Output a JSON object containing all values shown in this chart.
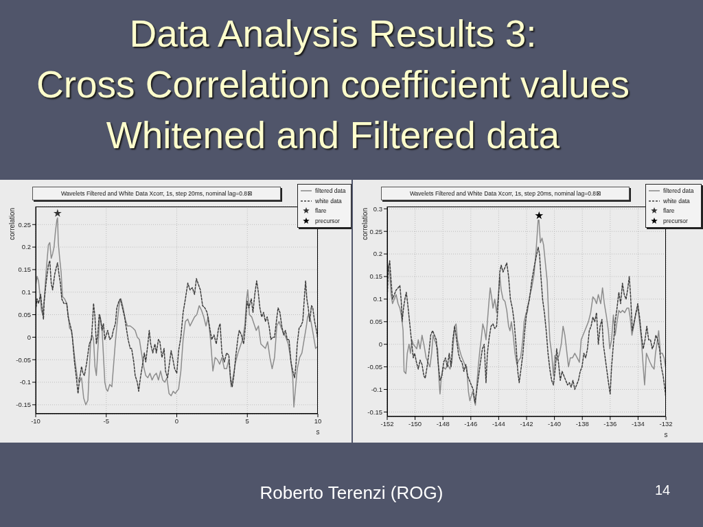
{
  "chart_data": [
    {
      "type": "line",
      "title": "Data Analysis Results 3:\nCross Correlation coefficient values\nWhitened and Filtered data",
      "subtitle": "Wavelets Filtered and White Data Xcorr, 1s, step 20ms, nominal lag=0.8⊠",
      "xlabel": "s",
      "ylabel": "correlation",
      "xlim": [
        -10,
        10
      ],
      "xticks": [
        -10,
        -5,
        0,
        5,
        10
      ],
      "ylim": [
        -0.17,
        0.29
      ],
      "yticks": [
        -0.15,
        -0.1,
        -0.05,
        0,
        0.05,
        0.1,
        0.15,
        0.2,
        0.25
      ],
      "grid": true,
      "legend": "top right",
      "series": [
        {
          "name": "filtered data",
          "color": "#8c8c8c",
          "line_style": "solid",
          "x": [
            -10,
            -9.9,
            -9.8,
            -9.7,
            -9.6,
            -9.5,
            -9.4,
            -9.25,
            -9.1,
            -9.0,
            -8.9,
            -8.8,
            -8.7,
            -8.6,
            -8.5,
            -8.45,
            -8.4,
            -8.3,
            -8.2,
            -8.1,
            -7.95,
            -7.8,
            -7.7,
            -7.6,
            -7.45,
            -7.35,
            -7.2,
            -7.05,
            -6.9,
            -6.75,
            -6.6,
            -6.45,
            -6.3,
            -6.2,
            -6.1,
            -6.0,
            -5.9,
            -5.8,
            -5.7,
            -5.45,
            -5.3,
            -5.2,
            -5.1,
            -5.0,
            -4.9,
            -4.75,
            -4.6,
            -4.5,
            -4.35,
            -4.2,
            -4.05,
            -3.95,
            -3.8,
            -3.65,
            -3.5,
            -3.3,
            -3.1,
            -2.95,
            -2.8,
            -2.65,
            -2.5,
            -2.35,
            -2.2,
            -2.05,
            -1.9,
            -1.75,
            -1.6,
            -1.45,
            -1.3,
            -1.15,
            -1.0,
            -0.85,
            -0.7,
            -0.55,
            -0.4,
            -0.25,
            -0.1,
            0.0,
            0.13,
            0.29,
            0.45,
            0.61,
            0.78,
            0.94,
            1.1,
            1.26,
            1.42,
            1.59,
            1.75,
            1.91,
            2.07,
            2.23,
            2.39,
            2.56,
            2.72,
            2.88,
            3.04,
            3.2,
            3.37,
            3.53,
            3.69,
            3.85,
            4.01,
            4.17,
            4.34,
            4.5,
            4.66,
            4.82,
            4.95,
            5.03,
            5.15,
            5.31,
            5.47,
            5.63,
            5.79,
            5.96,
            6.12,
            6.28,
            6.44,
            6.6,
            6.76,
            6.93,
            7.09,
            7.25,
            7.41,
            7.57,
            7.73,
            7.9,
            8.06,
            8.22,
            8.3,
            8.38,
            8.54,
            8.71,
            8.87,
            9.03,
            9.19,
            9.27,
            9.35,
            9.51,
            9.68,
            9.84,
            10.0
          ],
          "values": [
            0.115,
            0.135,
            0.125,
            0.095,
            0.06,
            0.05,
            0.08,
            0.15,
            0.205,
            0.21,
            0.175,
            0.185,
            0.2,
            0.235,
            0.26,
            0.265,
            0.21,
            0.175,
            0.145,
            0.09,
            0.085,
            0.075,
            0.05,
            0.02,
            0.015,
            -0.015,
            -0.055,
            -0.09,
            -0.1,
            -0.09,
            -0.135,
            -0.15,
            -0.14,
            -0.07,
            -0.005,
            0.005,
            -0.005,
            -0.065,
            -0.085,
            0.05,
            0.02,
            -0.04,
            -0.1,
            -0.115,
            -0.12,
            -0.105,
            -0.11,
            -0.07,
            -0.01,
            0.04,
            0.08,
            0.085,
            0.065,
            0.04,
            0.025,
            0.025,
            0.02,
            0.015,
            0.0,
            -0.005,
            -0.035,
            -0.065,
            -0.085,
            -0.09,
            -0.08,
            -0.095,
            -0.085,
            -0.08,
            -0.095,
            -0.075,
            -0.095,
            -0.1,
            -0.09,
            -0.125,
            -0.13,
            -0.12,
            -0.125,
            -0.12,
            -0.115,
            -0.075,
            -0.005,
            0.035,
            0.04,
            0.025,
            0.035,
            0.045,
            0.05,
            0.07,
            0.06,
            0.045,
            0.025,
            0.045,
            -0.005,
            -0.075,
            -0.045,
            -0.05,
            -0.06,
            -0.045,
            -0.07,
            -0.07,
            -0.05,
            -0.11,
            -0.085,
            -0.055,
            -0.035,
            -0.02,
            -0.005,
            0.025,
            0.085,
            0.105,
            0.05,
            0.045,
            0.03,
            0.015,
            0.025,
            -0.015,
            -0.02,
            -0.025,
            -0.01,
            -0.045,
            -0.07,
            -0.045,
            0.025,
            0.035,
            0.02,
            0.01,
            0.0,
            -0.015,
            -0.045,
            -0.09,
            -0.155,
            -0.125,
            -0.07,
            -0.045,
            -0.035,
            -0.005,
            0.025,
            0.045,
            0.05,
            0.035,
            0.005,
            -0.025,
            -0.02
          ]
        },
        {
          "name": "white data",
          "color": "#3c3c3c",
          "line_style": "dashed",
          "x": [
            -10,
            -9.9,
            -9.8,
            -9.65,
            -9.55,
            -9.45,
            -9.4,
            -9.25,
            -9.1,
            -9.0,
            -8.9,
            -8.8,
            -8.65,
            -8.5,
            -8.45,
            -8.35,
            -8.25,
            -8.15,
            -8.0,
            -7.8,
            -7.7,
            -7.5,
            -7.4,
            -7.25,
            -7.1,
            -7.0,
            -6.9,
            -6.75,
            -6.65,
            -6.55,
            -6.4,
            -6.2,
            -6.05,
            -5.95,
            -5.9,
            -5.8,
            -5.7,
            -5.6,
            -5.5,
            -5.4,
            -5.3,
            -5.2,
            -5.1,
            -5.0,
            -4.9,
            -4.75,
            -4.6,
            -4.5,
            -4.35,
            -4.25,
            -4.1,
            -4.0,
            -3.85,
            -3.7,
            -3.6,
            -3.45,
            -3.3,
            -3.2,
            -3.05,
            -2.95,
            -2.8,
            -2.7,
            -2.6,
            -2.45,
            -2.3,
            -2.2,
            -2.05,
            -1.95,
            -1.85,
            -1.7,
            -1.55,
            -1.45,
            -1.3,
            -1.2,
            -1.05,
            -0.9,
            -0.8,
            -0.65,
            -0.55,
            -0.4,
            -0.3,
            -0.15,
            0.0,
            0.13,
            0.29,
            0.45,
            0.61,
            0.78,
            0.94,
            1.1,
            1.26,
            1.39,
            1.5,
            1.67,
            1.83,
            1.99,
            2.15,
            2.31,
            2.48,
            2.64,
            2.8,
            2.96,
            3.07,
            3.2,
            3.37,
            3.53,
            3.69,
            3.82,
            3.93,
            4.05,
            4.17,
            4.34,
            4.43,
            4.58,
            4.74,
            4.85,
            4.98,
            5.11,
            5.28,
            5.4,
            5.53,
            5.66,
            5.76,
            5.89,
            6.02,
            6.15,
            6.28,
            6.41,
            6.54,
            6.67,
            6.8,
            6.93,
            7.06,
            7.18,
            7.31,
            7.44,
            7.57,
            7.7,
            7.83,
            7.96,
            8.09,
            8.22,
            8.35,
            8.45,
            8.54,
            8.67,
            8.8,
            8.93,
            9.06,
            9.13,
            9.22,
            9.32,
            9.42,
            9.55,
            9.64,
            9.77,
            9.9,
            10.0
          ],
          "values": [
            0.06,
            0.085,
            0.075,
            0.095,
            0.065,
            0.04,
            0.08,
            0.125,
            0.16,
            0.17,
            0.12,
            0.105,
            0.14,
            0.16,
            0.165,
            0.14,
            0.12,
            0.085,
            0.075,
            0.075,
            0.045,
            0.02,
            0.0,
            -0.055,
            -0.095,
            -0.125,
            -0.095,
            -0.065,
            -0.08,
            -0.085,
            -0.06,
            -0.015,
            -0.005,
            0.045,
            0.075,
            0.045,
            -0.015,
            0.005,
            0.05,
            0.04,
            0.015,
            0.03,
            -0.005,
            0.005,
            0.015,
            -0.005,
            0.0,
            0.015,
            0.03,
            0.065,
            0.08,
            0.085,
            0.065,
            0.045,
            0.025,
            -0.005,
            -0.025,
            -0.025,
            -0.055,
            -0.085,
            -0.1,
            -0.12,
            -0.095,
            -0.065,
            -0.035,
            -0.055,
            -0.015,
            0.015,
            -0.015,
            -0.035,
            -0.015,
            -0.035,
            -0.005,
            -0.01,
            -0.045,
            -0.025,
            -0.075,
            -0.09,
            -0.065,
            -0.03,
            -0.045,
            -0.07,
            -0.08,
            -0.03,
            0.0,
            0.055,
            0.085,
            0.12,
            0.105,
            0.11,
            0.095,
            0.13,
            0.12,
            0.105,
            0.07,
            0.065,
            0.055,
            0.025,
            -0.005,
            0.005,
            -0.015,
            0.02,
            0.03,
            -0.035,
            -0.055,
            -0.035,
            -0.04,
            -0.095,
            -0.11,
            -0.085,
            -0.045,
            0.0,
            0.015,
            0.005,
            -0.015,
            0.02,
            0.08,
            0.065,
            0.085,
            0.055,
            0.095,
            0.125,
            0.105,
            0.065,
            0.045,
            0.055,
            0.035,
            0.045,
            0.025,
            -0.005,
            0.0,
            0.0,
            0.035,
            0.065,
            0.055,
            0.025,
            0.005,
            0.015,
            -0.005,
            -0.005,
            -0.055,
            -0.075,
            -0.09,
            -0.06,
            -0.015,
            0.02,
            0.025,
            0.035,
            0.095,
            0.125,
            0.085,
            0.065,
            0.035,
            0.07,
            0.065,
            0.035,
            0.015,
            -0.005
          ]
        },
        {
          "name": "flare",
          "type": "scatter",
          "color": "#333333",
          "marker": "star",
          "x": [
            -8.45
          ],
          "values": [
            0.275
          ]
        },
        {
          "name": "precursor",
          "type": "scatter",
          "color": "#000000",
          "marker": "star"
        }
      ],
      "annotations": [
        "Roberto Terenzi (ROG)",
        "14"
      ]
    },
    {
      "type": "line",
      "subtitle": "Wavelets Filtered and White Data Xcorr, 1s, step 20ms, nominal lag=0.8⊠",
      "xlabel": "s",
      "ylabel": "correlation",
      "xlim": [
        -152,
        -132
      ],
      "xticks": [
        -152,
        -150,
        -148,
        -146,
        -144,
        -142,
        -140,
        -138,
        -136,
        -134,
        -132
      ],
      "ylim": [
        -0.16,
        0.305
      ],
      "yticks": [
        -0.15,
        -0.1,
        -0.05,
        0,
        0.05,
        0.1,
        0.15,
        0.2,
        0.25,
        0.3
      ],
      "grid": true,
      "legend": "top right",
      "series": [
        {
          "name": "filtered data",
          "color": "#8c8c8c",
          "line_style": "solid",
          "x": [
            -152.0,
            -151.92,
            -151.82,
            -151.72,
            -151.62,
            -151.49,
            -151.36,
            -151.22,
            -151.09,
            -150.96,
            -150.86,
            -150.79,
            -150.66,
            -150.56,
            -150.43,
            -150.33,
            -150.23,
            -150.13,
            -149.88,
            -149.77,
            -149.64,
            -149.5,
            -149.34,
            -149.21,
            -149.07,
            -148.94,
            -148.81,
            -148.71,
            -148.61,
            -148.48,
            -148.38,
            -148.28,
            -148.21,
            -148.12,
            -147.98,
            -147.82,
            -147.65,
            -147.49,
            -147.36,
            -147.26,
            -147.16,
            -147.06,
            -146.96,
            -146.83,
            -146.69,
            -146.56,
            -146.43,
            -146.3,
            -146.17,
            -146.07,
            -145.97,
            -145.87,
            -145.77,
            -145.67,
            -145.57,
            -145.47,
            -145.34,
            -145.24,
            -145.14,
            -145.01,
            -144.91,
            -144.81,
            -144.71,
            -144.61,
            -144.51,
            -144.41,
            -144.28,
            -144.15,
            -144.02,
            -143.92,
            -143.82,
            -143.69,
            -143.55,
            -143.42,
            -143.29,
            -143.19,
            -143.09,
            -142.96,
            -142.83,
            -142.69,
            -142.56,
            -142.43,
            -142.3,
            -142.17,
            -142.03,
            -141.95,
            -141.79,
            -141.63,
            -141.46,
            -141.3,
            -141.17,
            -141.11,
            -141.01,
            -140.89,
            -140.78,
            -140.65,
            -140.52,
            -140.41,
            -140.33,
            -140.2,
            -140.07,
            -139.97,
            -139.84,
            -139.67,
            -139.51,
            -139.38,
            -139.25,
            -139.12,
            -138.99,
            -138.86,
            -138.7,
            -138.54,
            -138.37,
            -138.21,
            -138.08,
            -137.95,
            -137.82,
            -137.69,
            -137.56,
            -137.4,
            -137.24,
            -137.11,
            -136.98,
            -136.85,
            -136.68,
            -136.55,
            -136.42,
            -136.26,
            -136.13,
            -136.03,
            -135.9,
            -135.77,
            -135.64,
            -135.51,
            -135.38,
            -135.25,
            -135.12,
            -134.96,
            -134.8,
            -134.67,
            -134.57,
            -134.44,
            -134.31,
            -134.15,
            -134.02,
            -133.89,
            -133.76,
            -133.63,
            -133.53,
            -133.4,
            -133.27,
            -133.14,
            -132.98,
            -132.85,
            -132.75,
            -132.65,
            -132.52,
            -132.39,
            -132.26,
            -132.13,
            -132.03
          ],
          "values": [
            0.155,
            0.175,
            0.155,
            0.11,
            0.09,
            0.1,
            0.11,
            0.09,
            0.08,
            0.06,
            0.03,
            -0.06,
            -0.065,
            -0.02,
            0.0,
            -0.02,
            0.01,
            0.0,
            -0.01,
            0.01,
            -0.01,
            0.02,
            -0.005,
            -0.03,
            -0.04,
            -0.05,
            -0.02,
            0.02,
            0.01,
            0.0,
            -0.01,
            -0.08,
            -0.11,
            -0.075,
            -0.05,
            -0.055,
            -0.045,
            -0.055,
            -0.04,
            0.0,
            0.04,
            0.045,
            0.01,
            -0.01,
            -0.025,
            -0.035,
            -0.045,
            -0.05,
            -0.105,
            -0.125,
            -0.115,
            -0.105,
            -0.12,
            -0.135,
            -0.09,
            -0.05,
            -0.01,
            0.015,
            0.045,
            0.03,
            0.01,
            0.05,
            0.09,
            0.125,
            0.105,
            0.08,
            0.1,
            0.07,
            0.11,
            0.15,
            0.12,
            0.1,
            0.095,
            0.075,
            0.04,
            0.03,
            0.05,
            0.02,
            -0.02,
            -0.045,
            -0.035,
            -0.03,
            0.0,
            0.05,
            0.07,
            0.07,
            0.105,
            0.125,
            0.155,
            0.215,
            0.275,
            0.275,
            0.225,
            0.235,
            0.22,
            0.18,
            0.14,
            0.06,
            0.01,
            -0.02,
            -0.07,
            -0.025,
            -0.035,
            -0.025,
            0.0,
            0.04,
            0.02,
            -0.015,
            -0.05,
            -0.03,
            -0.03,
            -0.02,
            -0.03,
            -0.04,
            0.01,
            0.02,
            0.03,
            0.04,
            0.05,
            0.07,
            0.105,
            0.1,
            0.09,
            0.11,
            0.09,
            0.125,
            0.09,
            0.06,
            0.03,
            -0.01,
            0.01,
            0.065,
            0.02,
            0.05,
            0.075,
            0.07,
            0.075,
            0.07,
            0.08,
            0.08,
            0.06,
            0.02,
            0.04,
            0.07,
            0.08,
            0.05,
            0.01,
            -0.05,
            -0.09,
            -0.02,
            -0.03,
            -0.04,
            -0.05,
            -0.055,
            -0.02,
            0.0,
            0.03,
            -0.02,
            -0.02,
            -0.03,
            -0.05
          ]
        },
        {
          "name": "white data",
          "color": "#3c3c3c",
          "line_style": "dashed",
          "x": [
            -152.0,
            -151.92,
            -151.82,
            -151.72,
            -151.62,
            -151.49,
            -151.36,
            -151.22,
            -151.09,
            -150.99,
            -150.93,
            -150.83,
            -150.73,
            -150.63,
            -150.53,
            -150.43,
            -150.33,
            -150.23,
            -150.13,
            -150.03,
            -149.9,
            -149.77,
            -149.64,
            -149.5,
            -149.37,
            -149.27,
            -149.14,
            -149.01,
            -148.88,
            -148.74,
            -148.61,
            -148.48,
            -148.35,
            -148.21,
            -148.08,
            -147.95,
            -147.82,
            -147.69,
            -147.55,
            -147.42,
            -147.29,
            -147.16,
            -147.02,
            -146.89,
            -146.76,
            -146.63,
            -146.5,
            -146.36,
            -146.23,
            -146.1,
            -145.97,
            -145.83,
            -145.7,
            -145.57,
            -145.44,
            -145.31,
            -145.17,
            -145.04,
            -144.91,
            -144.81,
            -144.68,
            -144.55,
            -144.41,
            -144.28,
            -144.15,
            -144.02,
            -143.92,
            -143.82,
            -143.69,
            -143.55,
            -143.42,
            -143.29,
            -143.16,
            -143.02,
            -142.89,
            -142.76,
            -142.63,
            -142.53,
            -142.4,
            -142.26,
            -142.13,
            -142.03,
            -141.95,
            -141.79,
            -141.63,
            -141.46,
            -141.3,
            -141.17,
            -141.07,
            -140.98,
            -140.85,
            -140.72,
            -140.59,
            -140.46,
            -140.33,
            -140.2,
            -140.07,
            -139.93,
            -139.84,
            -139.71,
            -139.58,
            -139.45,
            -139.32,
            -139.19,
            -139.06,
            -138.93,
            -138.8,
            -138.67,
            -138.54,
            -138.41,
            -138.28,
            -138.15,
            -138.02,
            -137.89,
            -137.76,
            -137.63,
            -137.5,
            -137.37,
            -137.24,
            -137.11,
            -136.98,
            -136.85,
            -136.72,
            -136.59,
            -136.49,
            -136.36,
            -136.23,
            -136.1,
            -136.0,
            -135.9,
            -135.77,
            -135.64,
            -135.51,
            -135.38,
            -135.25,
            -135.12,
            -134.99,
            -134.86,
            -134.73,
            -134.63,
            -134.54,
            -134.41,
            -134.28,
            -134.15,
            -134.02,
            -133.89,
            -133.76,
            -133.63,
            -133.5,
            -133.37,
            -133.24,
            -133.11,
            -132.98,
            -132.85,
            -132.72,
            -132.59,
            -132.46,
            -132.33,
            -132.2,
            -132.07,
            -132.0
          ],
          "values": [
            0.1,
            0.165,
            0.185,
            0.14,
            0.1,
            0.11,
            0.12,
            0.125,
            0.13,
            0.095,
            0.05,
            0.08,
            0.1,
            0.115,
            0.09,
            0.06,
            0.03,
            0.0,
            -0.03,
            -0.02,
            -0.04,
            -0.055,
            -0.035,
            -0.045,
            -0.07,
            -0.075,
            -0.05,
            -0.02,
            0.02,
            0.03,
            0.02,
            0.01,
            -0.04,
            -0.08,
            -0.07,
            -0.04,
            -0.03,
            -0.05,
            -0.02,
            -0.05,
            0.01,
            0.04,
            0.01,
            -0.02,
            -0.035,
            -0.04,
            -0.06,
            -0.045,
            -0.07,
            -0.08,
            -0.09,
            -0.1,
            -0.13,
            -0.1,
            -0.07,
            -0.04,
            -0.01,
            0.0,
            -0.085,
            -0.02,
            0.015,
            0.04,
            0.045,
            0.035,
            0.04,
            0.1,
            0.16,
            0.175,
            0.16,
            0.17,
            0.18,
            0.15,
            0.1,
            0.08,
            0.05,
            0.0,
            -0.06,
            -0.085,
            -0.055,
            -0.02,
            0.03,
            0.06,
            0.08,
            0.1,
            0.14,
            0.17,
            0.195,
            0.215,
            0.2,
            0.155,
            0.1,
            0.07,
            0.03,
            -0.02,
            -0.055,
            -0.08,
            -0.09,
            -0.05,
            -0.01,
            -0.04,
            -0.08,
            -0.06,
            -0.07,
            -0.08,
            -0.09,
            -0.085,
            -0.095,
            -0.08,
            -0.1,
            -0.09,
            -0.08,
            -0.06,
            -0.05,
            -0.02,
            -0.03,
            -0.01,
            0.03,
            0.04,
            0.06,
            0.05,
            0.07,
            0.0,
            0.04,
            0.055,
            0.0,
            -0.03,
            -0.06,
            -0.09,
            -0.11,
            -0.05,
            0.0,
            0.05,
            0.08,
            0.115,
            0.09,
            0.135,
            0.11,
            0.1,
            0.125,
            0.15,
            0.11,
            0.03,
            0.05,
            0.07,
            0.09,
            0.06,
            0.02,
            -0.01,
            0.01,
            0.04,
            0.01,
            0.01,
            -0.01,
            0.0,
            0.02,
            0.01,
            -0.01,
            -0.05,
            -0.07,
            -0.1,
            -0.12
          ]
        },
        {
          "name": "flare",
          "type": "scatter",
          "color": "#333333",
          "marker": "star"
        },
        {
          "name": "precursor",
          "type": "scatter",
          "color": "#000000",
          "marker": "star",
          "x": [
            -141.1
          ],
          "values": [
            0.285
          ]
        }
      ]
    }
  ]
}
